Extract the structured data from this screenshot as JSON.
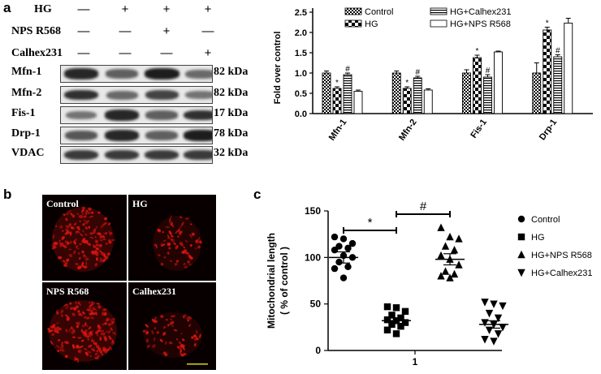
{
  "panels": {
    "a": "a",
    "b": "b",
    "c": "c"
  },
  "western_blot": {
    "conditions": [
      {
        "label": "HG",
        "signs": [
          "—",
          "+",
          "+",
          "+"
        ]
      },
      {
        "label": "NPS R568",
        "signs": [
          "—",
          "—",
          "+",
          "—"
        ]
      },
      {
        "label": "Calhex231",
        "signs": [
          "—",
          "—",
          "—",
          "+"
        ]
      }
    ],
    "bands": [
      {
        "protein": "Mfn-1",
        "kda": "82 kDa",
        "intensity": [
          0.85,
          0.55,
          0.9,
          0.5
        ]
      },
      {
        "protein": "Mfn-2",
        "kda": "82 kDa",
        "intensity": [
          0.8,
          0.5,
          0.7,
          0.45
        ]
      },
      {
        "protein": "Fis-1",
        "kda": "17 kDa",
        "intensity": [
          0.45,
          0.85,
          0.55,
          0.8
        ]
      },
      {
        "protein": "Drp-1",
        "kda": "78 kDa",
        "intensity": [
          0.6,
          0.85,
          0.55,
          0.9
        ]
      },
      {
        "protein": "VDAC",
        "kda": "32 kDa",
        "intensity": [
          0.75,
          0.75,
          0.75,
          0.75
        ]
      }
    ]
  },
  "micrographs": [
    {
      "label": "Control"
    },
    {
      "label": "HG"
    },
    {
      "label": "NPS R568"
    },
    {
      "label": "Calhex231"
    }
  ],
  "colors": {
    "fluorescence": "#d8140f",
    "background": "#080000"
  },
  "chart_data": [
    {
      "type": "bar",
      "panel": "a",
      "ylabel": "Fold over control",
      "ylim": [
        0,
        2.5
      ],
      "yticks": [
        "0.0",
        "0.5",
        "1.0",
        "1.5",
        "2.0",
        "2.5"
      ],
      "categories": [
        "Mfn-1",
        "Mfn-2",
        "Fis-1",
        "Drp-1"
      ],
      "series": [
        {
          "name": "Control",
          "values": [
            1.0,
            1.0,
            1.0,
            1.0
          ],
          "errors": [
            0.05,
            0.05,
            0.08,
            0.25
          ]
        },
        {
          "name": "HG",
          "values": [
            0.62,
            0.62,
            1.38,
            2.06
          ],
          "errors": [
            0.04,
            0.04,
            0.06,
            0.07
          ]
        },
        {
          "name": "HG+Calhex231",
          "values": [
            0.96,
            0.88,
            0.9,
            1.4
          ],
          "errors": [
            0.04,
            0.04,
            0.06,
            0.05
          ]
        },
        {
          "name": "HG+NPS R568",
          "values": [
            0.55,
            0.58,
            1.52,
            2.23
          ],
          "errors": [
            0.03,
            0.03,
            0.02,
            0.12
          ]
        }
      ],
      "annotations": [
        {
          "category": "Mfn-1",
          "series": "HG",
          "text": "*"
        },
        {
          "category": "Mfn-1",
          "series": "HG+Calhex231",
          "text": "#"
        },
        {
          "category": "Mfn-2",
          "series": "HG",
          "text": "*"
        },
        {
          "category": "Mfn-2",
          "series": "HG+Calhex231",
          "text": "#"
        },
        {
          "category": "Fis-1",
          "series": "HG",
          "text": "*"
        },
        {
          "category": "Fis-1",
          "series": "HG+Calhex231",
          "text": "#"
        },
        {
          "category": "Drp-1",
          "series": "HG",
          "text": "*"
        },
        {
          "category": "Drp-1",
          "series": "HG+Calhex231",
          "text": "#"
        }
      ],
      "legend_position": "top"
    },
    {
      "type": "scatter",
      "panel": "c",
      "ylabel_lines": [
        "Mitochondrial length",
        "( % of control )"
      ],
      "ylim": [
        0,
        150
      ],
      "yticks": [
        "0",
        "50",
        "100",
        "150"
      ],
      "xtick": "1",
      "groups": [
        {
          "name": "Control",
          "marker": "circle",
          "mean": 100,
          "sem": 6,
          "values": [
            122,
            120,
            115,
            112,
            110,
            108,
            102,
            100,
            95,
            90,
            88,
            78
          ]
        },
        {
          "name": "HG",
          "marker": "square",
          "mean": 32,
          "sem": 3,
          "values": [
            47,
            46,
            42,
            38,
            35,
            33,
            32,
            30,
            28,
            26,
            22,
            18
          ]
        },
        {
          "name": "HG+NPS R568",
          "marker": "triangle-up",
          "mean": 98,
          "sem": 6,
          "values": [
            132,
            122,
            120,
            112,
            108,
            102,
            98,
            92,
            85,
            82,
            80,
            78
          ]
        },
        {
          "name": "HG+Calhex231",
          "marker": "triangle-down",
          "mean": 28,
          "sem": 4,
          "values": [
            52,
            50,
            48,
            40,
            35,
            30,
            28,
            25,
            22,
            18,
            12,
            10
          ]
        }
      ],
      "significance": [
        {
          "from": "Control",
          "to": "HG",
          "text": "*"
        },
        {
          "from": "HG",
          "to": "HG+NPS R568",
          "text": "#"
        }
      ],
      "legend_position": "right"
    }
  ]
}
